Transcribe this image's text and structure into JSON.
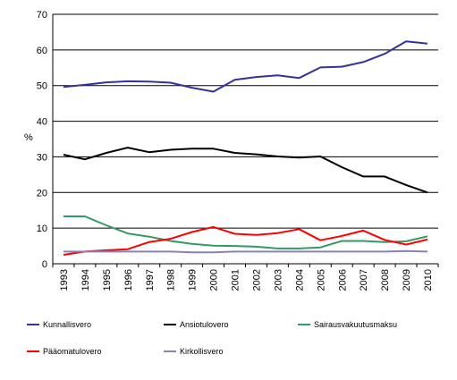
{
  "chart_data": {
    "type": "line",
    "title": "",
    "xlabel": "",
    "ylabel": "%",
    "ylim": [
      0,
      70
    ],
    "yticks": [
      0,
      10,
      20,
      30,
      40,
      50,
      60,
      70
    ],
    "grid": true,
    "legend_position": "bottom",
    "x": [
      "1993",
      "1994",
      "1995",
      "1996",
      "1997",
      "1998",
      "1999",
      "2000",
      "2001",
      "2002",
      "2003",
      "2004",
      "2005",
      "2006",
      "2007",
      "2008",
      "2009",
      "2010"
    ],
    "series": [
      {
        "name": "Kunnallisvero",
        "color": "#33339a",
        "values": [
          49.6,
          50.2,
          50.9,
          51.2,
          51.1,
          50.8,
          49.4,
          48.3,
          51.6,
          52.4,
          52.9,
          52.1,
          55.1,
          55.3,
          56.6,
          58.9,
          62.4,
          61.8
        ]
      },
      {
        "name": "Ansiotulovero",
        "color": "#000000",
        "values": [
          30.6,
          29.3,
          31.1,
          32.6,
          31.3,
          32.0,
          32.3,
          32.3,
          31.1,
          30.7,
          30.1,
          29.8,
          30.1,
          27.1,
          24.5,
          24.5,
          22.1,
          20.0
        ]
      },
      {
        "name": "Sairausvakuutusmaksu",
        "color": "#339966",
        "values": [
          13.3,
          13.3,
          10.8,
          8.5,
          7.6,
          6.4,
          5.6,
          5.1,
          5.0,
          4.8,
          4.3,
          4.3,
          4.6,
          6.4,
          6.4,
          6.1,
          6.3,
          7.7
        ]
      },
      {
        "name": "Pääomatulovero",
        "color": "#ff0000",
        "values": [
          2.5,
          3.4,
          3.8,
          4.1,
          6.1,
          7.0,
          8.9,
          10.3,
          8.4,
          8.1,
          8.6,
          9.7,
          6.6,
          7.8,
          9.3,
          6.7,
          5.4,
          6.8
        ]
      },
      {
        "name": "Kirkollisvero",
        "color": "#8a80b8",
        "values": [
          3.4,
          3.4,
          3.4,
          3.4,
          3.4,
          3.4,
          3.2,
          3.2,
          3.4,
          3.4,
          3.4,
          3.4,
          3.4,
          3.4,
          3.4,
          3.4,
          3.6,
          3.4
        ]
      }
    ]
  }
}
